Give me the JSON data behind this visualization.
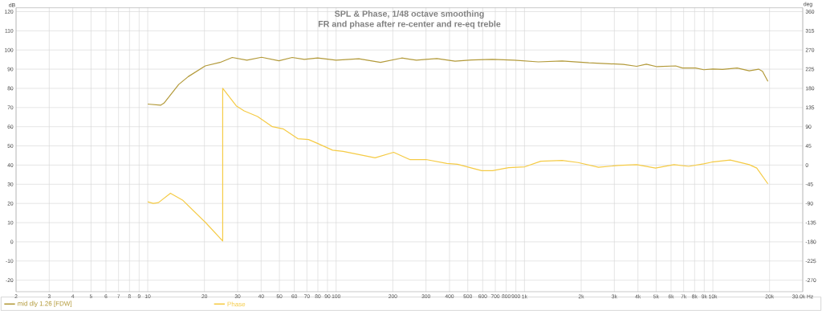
{
  "chart_data": {
    "type": "line",
    "title": "SPL & Phase, 1/48 octave smoothing",
    "subtitle": "FR and phase after re-center and re-eq treble",
    "ylabel": "dB",
    "y2label": "deg",
    "log": "x",
    "grid": true,
    "legend": "bottom",
    "marker": "none",
    "line_style": "solid",
    "xlim": [
      2,
      30000
    ],
    "ylim": [
      -26,
      122
    ],
    "y2lim": [
      -297,
      369
    ],
    "xticks": [
      2,
      3,
      4,
      5,
      6,
      7,
      8,
      9,
      10,
      20,
      30,
      40,
      50,
      60,
      70,
      80,
      90,
      100,
      200,
      300,
      400,
      500,
      600,
      700,
      800,
      900,
      {
        "value": 1000,
        "label": "1k"
      },
      {
        "value": 2000,
        "label": "2k"
      },
      {
        "value": 3000,
        "label": "3k"
      },
      {
        "value": 4000,
        "label": "4k"
      },
      {
        "value": 5000,
        "label": "5k"
      },
      {
        "value": 6000,
        "label": "6k"
      },
      {
        "value": 7000,
        "label": "7k"
      },
      {
        "value": 8000,
        "label": "8k"
      },
      {
        "value": 9000,
        "label": "9k"
      },
      {
        "value": 10000,
        "label": "10k"
      },
      {
        "value": 20000,
        "label": "20k"
      },
      {
        "value": 30000,
        "label": "30.0k Hz"
      }
    ],
    "yticks": [
      -20,
      -10,
      0,
      10,
      20,
      30,
      40,
      50,
      60,
      70,
      80,
      90,
      100,
      110,
      120
    ],
    "y2ticks": [
      -270,
      -225,
      -180,
      -135,
      -90,
      -45,
      0,
      45,
      90,
      135,
      180,
      225,
      270,
      315,
      360
    ],
    "series": [
      {
        "name": "mid dly 1.26 [FDW]",
        "color": "#b39a3a",
        "x": [
          10,
          11.7,
          12.2,
          14.6,
          16.4,
          20.2,
          24.2,
          28.1,
          33.6,
          40.2,
          49.7,
          58.5,
          67.8,
          79.8,
          100,
          132,
          172,
          223,
          267,
          300,
          343,
          428,
          523,
          676,
          882,
          1184,
          1584,
          2195,
          3350,
          3940,
          4435,
          5050,
          6350,
          6890,
          8100,
          8940,
          10000,
          11250,
          13450,
          15600,
          17500,
          18350,
          19600
        ],
        "values": [
          71.8,
          71.2,
          72.3,
          82,
          86.1,
          91.7,
          93.5,
          96.1,
          94.7,
          96.2,
          94.4,
          96.1,
          95.1,
          95.8,
          94.7,
          95.4,
          93.5,
          95.8,
          94.7,
          95.1,
          95.5,
          94.2,
          94.8,
          95.1,
          94.7,
          93.8,
          94.3,
          93.3,
          92.5,
          91.5,
          92.6,
          91.3,
          91.7,
          90.6,
          90.6,
          89.7,
          90.1,
          89.9,
          90.6,
          89.1,
          90.0,
          88.9,
          83.6
        ]
      },
      {
        "name": "Phase",
        "color": "#f5cb45",
        "axis": "y2",
        "x": [
          10,
          10.7,
          11.4,
          13.2,
          15.3,
          20.2,
          25,
          25,
          29.5,
          32.5,
          38.3,
          45.9,
          52.3,
          62.6,
          71.4,
          78.7,
          95.8,
          109,
          161,
          202,
          246,
          300,
          387,
          440,
          593,
          676,
          824,
          1005,
          1220,
          1584,
          1925,
          2470,
          3140,
          3940,
          4960,
          6220,
          7440,
          8940,
          9870,
          12370,
          15600,
          17100,
          19600
        ],
        "values": [
          -86,
          -90,
          -88,
          -66,
          -82,
          -134,
          -178,
          180,
          139,
          127,
          114,
          90,
          85,
          62,
          60,
          52,
          35,
          32,
          17,
          30,
          13,
          13,
          4,
          2,
          -13,
          -13,
          -6,
          -4,
          9,
          11,
          6,
          -5,
          -1,
          1,
          -7,
          1,
          -3,
          3,
          7,
          12,
          1,
          -7,
          -44
        ]
      }
    ]
  }
}
